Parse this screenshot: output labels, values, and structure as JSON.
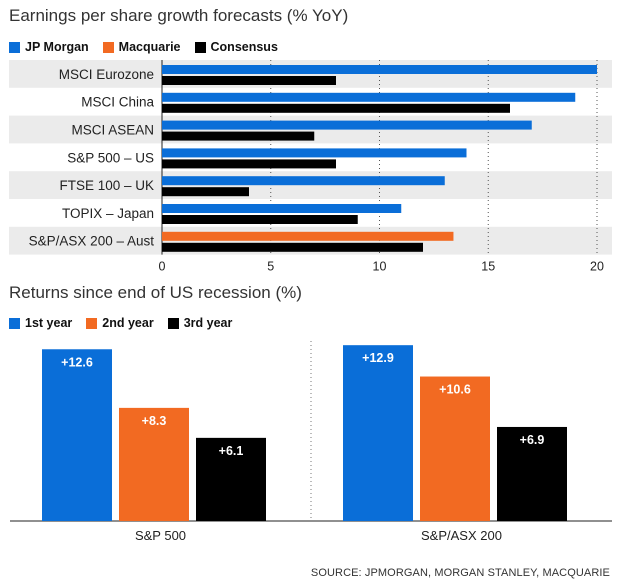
{
  "colors": {
    "blue": "#0a6ed8",
    "orange": "#f26a22",
    "black": "#000000",
    "row_band": "#ebebeb"
  },
  "chart_data": [
    {
      "type": "bar",
      "orientation": "horizontal",
      "title": "Earnings per share growth forecasts (% YoY)",
      "categories": [
        "MSCI Eurozone",
        "MSCI China",
        "MSCI ASEAN",
        "S&P 500 – US",
        "FTSE 100 – UK",
        "TOPIX – Japan",
        "S&P/ASX 200 – Aust"
      ],
      "series": [
        {
          "name": "JP Morgan",
          "values": [
            20,
            19,
            17,
            14,
            13,
            11,
            null
          ]
        },
        {
          "name": "Macquarie",
          "values": [
            null,
            null,
            null,
            null,
            null,
            null,
            13.4
          ]
        },
        {
          "name": "Consensus",
          "values": [
            8,
            16,
            7,
            8,
            4,
            9,
            12
          ]
        }
      ],
      "xlim": [
        0,
        20
      ],
      "xticks": [
        "0",
        "5",
        "10",
        "15",
        "20"
      ],
      "grid": "vertical dotted",
      "legend_position": "top-left"
    },
    {
      "type": "bar",
      "title": "Returns since end of US recession (%)",
      "categories": [
        "S&P 500",
        "S&P/ASX 200"
      ],
      "series": [
        {
          "name": "1st year",
          "values": [
            12.6,
            12.9
          ],
          "labels": [
            "+12.6",
            "+12.9"
          ]
        },
        {
          "name": "2nd year",
          "values": [
            8.3,
            10.6
          ],
          "labels": [
            "+8.3",
            "+10.6"
          ]
        },
        {
          "name": "3rd year",
          "values": [
            6.1,
            6.9
          ],
          "labels": [
            "+6.1",
            "+6.9"
          ]
        }
      ],
      "ylim": [
        0,
        13.5
      ],
      "legend_position": "top-left"
    }
  ],
  "source": "SOURCE: JPMORGAN, MORGAN STANLEY, MACQUARIE"
}
